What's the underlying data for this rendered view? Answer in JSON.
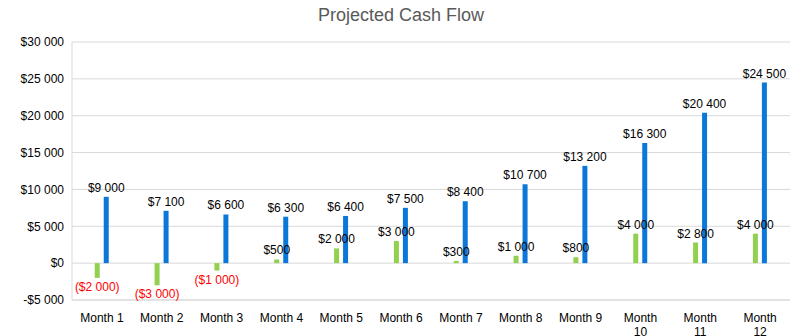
{
  "chart_data": {
    "type": "bar",
    "title": "Projected Cash Flow",
    "categories": [
      "Month 1",
      "Month 2",
      "Month 3",
      "Month 4",
      "Month 5",
      "Month 6",
      "Month 7",
      "Month 8",
      "Month 9",
      "Month 10",
      "Month 11",
      "Month 12"
    ],
    "series": [
      {
        "color": "#92D050",
        "values": [
          -2000,
          -3000,
          -1000,
          500,
          2000,
          3000,
          300,
          1000,
          800,
          4000,
          2800,
          4000
        ],
        "value_labels": [
          "($2 000)",
          "($3 000)",
          "($1 000)",
          "$500",
          "$2 000",
          "$3 000",
          "$300",
          "$1 000",
          "$800",
          "$4 000",
          "$2 800",
          "$4 000"
        ]
      },
      {
        "color": "#0B77D8",
        "values": [
          9000,
          7100,
          6600,
          6300,
          6400,
          7500,
          8400,
          10700,
          13200,
          16300,
          20400,
          24500
        ],
        "value_labels": [
          "$9 000",
          "$7 100",
          "$6 600",
          "$6 300",
          "$6 400",
          "$7 500",
          "$8 400",
          "$10 700",
          "$13 200",
          "$16 300",
          "$20 400",
          "$24 500"
        ]
      }
    ],
    "ylim": [
      -5000,
      30000
    ],
    "yticks": [
      {
        "value": -5000,
        "label": "-$5 000"
      },
      {
        "value": 0,
        "label": "$0"
      },
      {
        "value": 5000,
        "label": "$5 000"
      },
      {
        "value": 10000,
        "label": "$10 000"
      },
      {
        "value": 15000,
        "label": "$15 000"
      },
      {
        "value": 20000,
        "label": "$20 000"
      },
      {
        "value": 25000,
        "label": "$25 000"
      },
      {
        "value": 30000,
        "label": "$30 000"
      }
    ],
    "grid": true,
    "data_labels": true
  }
}
